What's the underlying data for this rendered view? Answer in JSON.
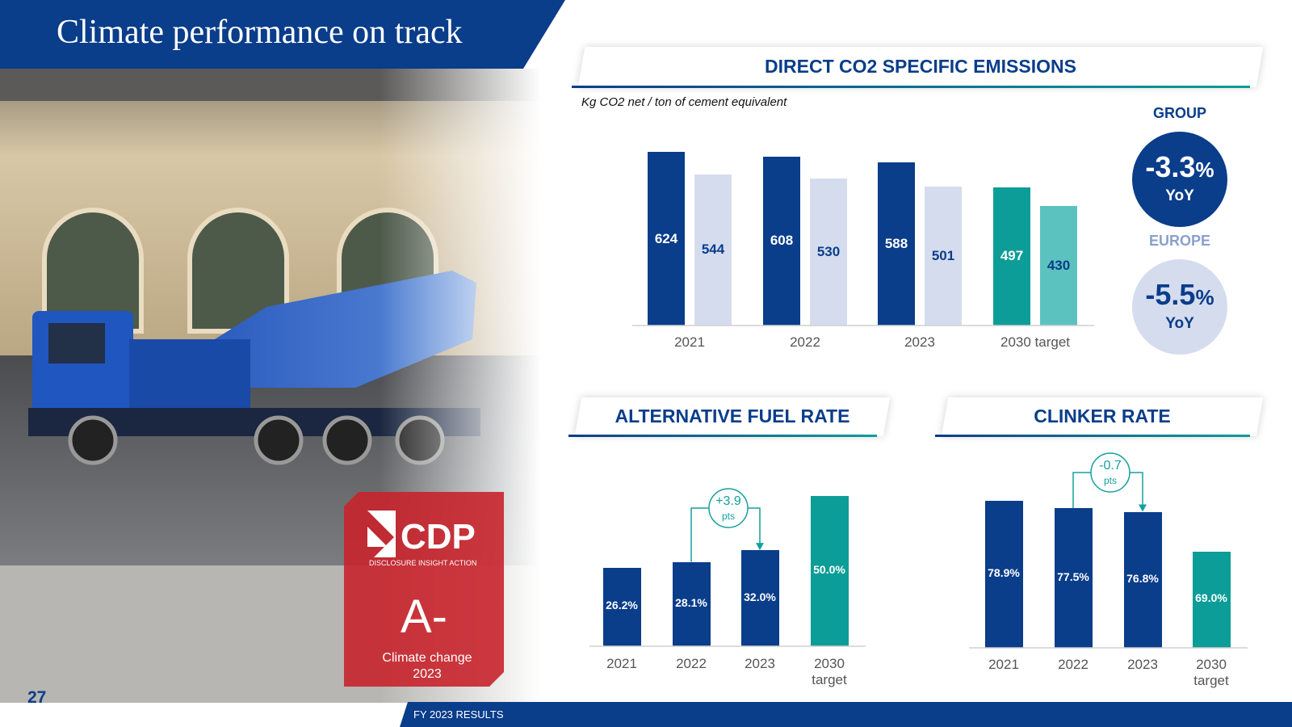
{
  "header": {
    "title": "Climate performance on track"
  },
  "chart_data": [
    {
      "type": "bar",
      "title": "DIRECT CO2 SPECIFIC EMISSIONS",
      "subtitle": "Kg CO2 net / ton of cement equivalent",
      "categories": [
        "2021",
        "2022",
        "2023",
        "2030 target"
      ],
      "series": [
        {
          "colors": [
            "#0a3d8a",
            "#0a3d8a",
            "#0a3d8a",
            "#0d9d98"
          ],
          "values": [
            624,
            608,
            588,
            497
          ]
        },
        {
          "colors": [
            "#d5dcee",
            "#d5dcee",
            "#d5dcee",
            "#5cc2c0"
          ],
          "values": [
            544,
            530,
            501,
            430
          ]
        }
      ],
      "ylim": [
        0,
        700
      ]
    },
    {
      "type": "bar",
      "title": "ALTERNATIVE FUEL RATE",
      "categories": [
        "2021",
        "2022",
        "2023",
        "2030 target"
      ],
      "values": [
        26.2,
        28.1,
        32.0,
        50.0
      ],
      "value_labels": [
        "26.2%",
        "28.1%",
        "32.0%",
        "50.0%"
      ],
      "colors": [
        "#0a3d8a",
        "#0a3d8a",
        "#0a3d8a",
        "#0d9d98"
      ],
      "ylim": [
        0,
        60
      ],
      "annotation": {
        "value": "+3.9",
        "unit": "pts"
      }
    },
    {
      "type": "bar",
      "title": "CLINKER RATE",
      "categories": [
        "2021",
        "2022",
        "2023",
        "2030 target"
      ],
      "values": [
        78.9,
        77.5,
        76.8,
        69.0
      ],
      "value_labels": [
        "78.9%",
        "77.5%",
        "76.8%",
        "69.0%"
      ],
      "colors": [
        "#0a3d8a",
        "#0a3d8a",
        "#0a3d8a",
        "#0d9d98"
      ],
      "ylim": [
        50,
        85
      ],
      "annotation": {
        "value": "-0.7",
        "unit": "pts"
      }
    }
  ],
  "kpis": [
    {
      "label": "GROUP",
      "value": "-3.3",
      "unit": "%",
      "period": "YoY"
    },
    {
      "label": "EUROPE",
      "value": "-5.5",
      "unit": "%",
      "period": "YoY"
    }
  ],
  "badge": {
    "brand": "CDP",
    "tagline": "DISCLOSURE INSIGHT ACTION",
    "score": "A-",
    "caption": "Climate change 2023"
  },
  "footer": {
    "page": "27",
    "text": "FY 2023 RESULTS"
  }
}
